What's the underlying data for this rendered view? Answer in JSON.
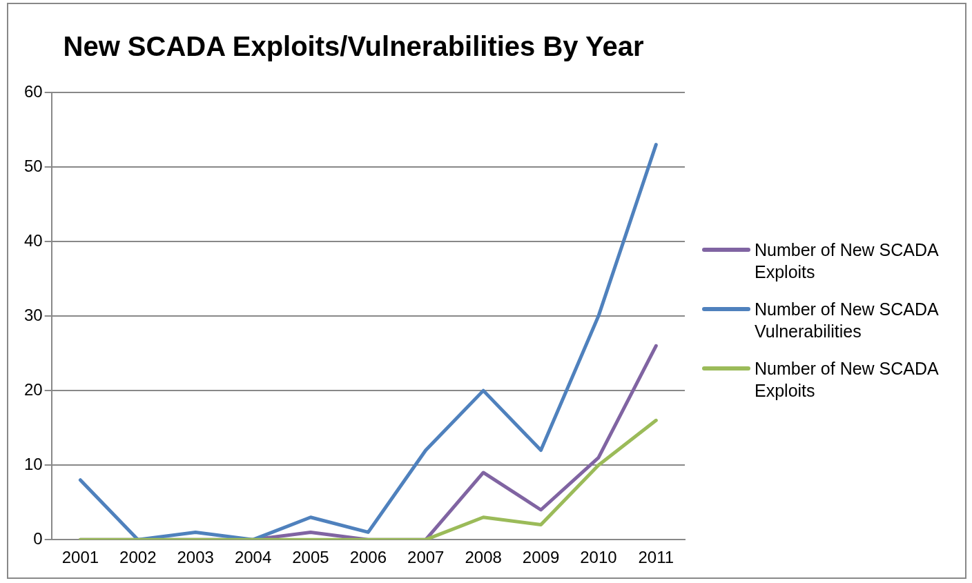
{
  "chart_data": {
    "type": "line",
    "title": "New SCADA Exploits/Vulnerabilities By Year",
    "categories": [
      "2001",
      "2002",
      "2003",
      "2004",
      "2005",
      "2006",
      "2007",
      "2008",
      "2009",
      "2010",
      "2011"
    ],
    "series": [
      {
        "name": "Number of New SCADA Exploits",
        "color": "#8064a2",
        "values": [
          0,
          0,
          0,
          0,
          1,
          0,
          0,
          9,
          4,
          11,
          26
        ]
      },
      {
        "name": "Number of New SCADA Vulnerabilities",
        "color": "#4f81bd",
        "values": [
          8,
          0,
          1,
          0,
          3,
          1,
          12,
          20,
          12,
          30,
          53
        ]
      },
      {
        "name": "Number of New SCADA Exploits",
        "color": "#9bbb59",
        "values": [
          0,
          0,
          0,
          0,
          0,
          0,
          0,
          3,
          2,
          10,
          16
        ]
      }
    ],
    "ylim": [
      0,
      60
    ],
    "yticks": [
      0,
      10,
      20,
      30,
      40,
      50,
      60
    ],
    "grid": "y",
    "legend": "right",
    "marker": "none",
    "line_style": "solid"
  }
}
